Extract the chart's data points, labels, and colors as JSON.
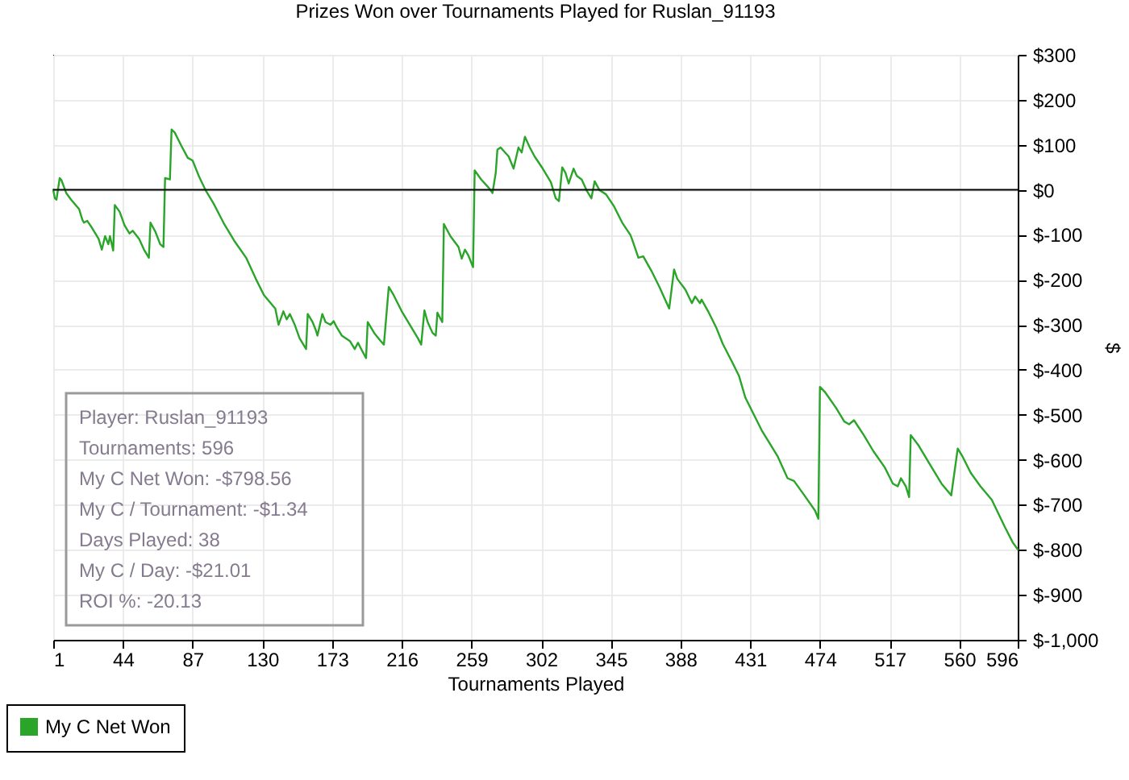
{
  "chart_data": {
    "type": "line",
    "title": "Prizes Won over Tournaments Played for Ruslan_91193",
    "xlabel": "Tournaments Played",
    "ylabel": "$",
    "x": [
      1,
      2,
      3,
      5,
      6,
      9,
      12,
      17,
      19,
      20,
      22,
      25,
      29,
      31,
      33,
      35,
      36,
      38,
      39,
      42,
      45,
      48,
      50,
      54,
      57,
      60,
      61,
      64,
      67,
      69,
      70,
      73,
      74,
      76,
      80,
      84,
      87,
      91,
      95,
      100,
      106,
      113,
      120,
      126,
      131,
      138,
      140,
      143,
      145,
      147,
      150,
      153,
      157,
      158,
      161,
      163,
      164,
      167,
      169,
      172,
      174,
      176,
      179,
      184,
      187,
      189,
      191,
      194,
      195,
      199,
      203,
      205,
      208,
      211,
      216,
      221,
      226,
      228,
      230,
      232,
      235,
      237,
      238,
      241,
      242,
      246,
      251,
      253,
      255,
      257,
      260,
      261,
      265,
      268,
      270,
      272,
      274,
      275,
      277,
      282,
      285,
      288,
      290,
      292,
      295,
      298,
      303,
      308,
      311,
      313,
      315,
      317,
      319,
      322,
      324,
      327,
      330,
      333,
      335,
      338,
      342,
      347,
      352,
      357,
      358,
      362,
      365,
      370,
      375,
      381,
      384,
      386,
      391,
      395,
      397,
      400,
      401,
      405,
      410,
      414,
      420,
      424,
      428,
      438,
      448,
      454,
      458,
      464,
      471,
      473,
      474,
      477,
      484,
      489,
      492,
      495,
      501,
      507,
      514,
      519,
      522,
      524,
      527,
      529,
      530,
      535,
      542,
      549,
      555,
      559,
      562,
      567,
      573,
      580,
      588,
      593,
      596
    ],
    "series": [
      {
        "name": "My C Net Won",
        "color": "#2aa52a",
        "values": [
          0,
          -19,
          -22,
          26,
          22,
          -7,
          -22,
          -43,
          -67,
          -73,
          -69,
          -85,
          -109,
          -133,
          -103,
          -121,
          -103,
          -135,
          -34,
          -49,
          -79,
          -97,
          -91,
          -109,
          -133,
          -151,
          -73,
          -93,
          -121,
          -127,
          26,
          23,
          134,
          127,
          98,
          71,
          65,
          29,
          -1,
          -31,
          -73,
          -115,
          -151,
          -198,
          -234,
          -264,
          -300,
          -270,
          -288,
          -276,
          -300,
          -330,
          -354,
          -276,
          -294,
          -312,
          -324,
          -276,
          -294,
          -300,
          -292,
          -306,
          -324,
          -336,
          -354,
          -340,
          -354,
          -374,
          -294,
          -318,
          -336,
          -344,
          -216,
          -234,
          -270,
          -300,
          -330,
          -344,
          -268,
          -294,
          -318,
          -324,
          -273,
          -294,
          -76,
          -103,
          -127,
          -153,
          -133,
          -145,
          -172,
          43,
          23,
          11,
          3,
          -7,
          38,
          89,
          94,
          74,
          47,
          94,
          83,
          118,
          94,
          74,
          47,
          17,
          -19,
          -25,
          50,
          38,
          14,
          47,
          31,
          23,
          -1,
          -19,
          19,
          -1,
          -10,
          -37,
          -73,
          -100,
          -109,
          -151,
          -148,
          -180,
          -216,
          -264,
          -177,
          -198,
          -222,
          -252,
          -237,
          -252,
          -244,
          -270,
          -306,
          -342,
          -384,
          -413,
          -462,
          -534,
          -593,
          -641,
          -647,
          -677,
          -713,
          -731,
          -438,
          -449,
          -485,
          -515,
          -521,
          -512,
          -545,
          -581,
          -617,
          -653,
          -659,
          -641,
          -659,
          -683,
          -545,
          -569,
          -611,
          -653,
          -679,
          -575,
          -593,
          -629,
          -659,
          -689,
          -749,
          -784,
          -799
        ]
      }
    ],
    "xlim": [
      1,
      596
    ],
    "xticks": [
      1,
      44,
      87,
      130,
      173,
      216,
      259,
      302,
      345,
      388,
      431,
      474,
      517,
      560,
      596
    ],
    "ylim": [
      -1000,
      300
    ],
    "yticks": [
      {
        "value": 300,
        "label": "$300"
      },
      {
        "value": 200,
        "label": "$200"
      },
      {
        "value": 100,
        "label": "$100"
      },
      {
        "value": 0,
        "label": "$0"
      },
      {
        "value": -100,
        "label": "$-100"
      },
      {
        "value": -200,
        "label": "$-200"
      },
      {
        "value": -300,
        "label": "$-300"
      },
      {
        "value": -400,
        "label": "$-400"
      },
      {
        "value": -500,
        "label": "$-500"
      },
      {
        "value": -600,
        "label": "$-600"
      },
      {
        "value": -700,
        "label": "$-700"
      },
      {
        "value": -800,
        "label": "$-800"
      },
      {
        "value": -900,
        "label": "$-900"
      },
      {
        "value": -1000,
        "label": "$-1,000"
      }
    ],
    "ref_lines": [
      {
        "axis": "y",
        "value": 0,
        "color": "#000000"
      }
    ],
    "grid": true,
    "legend": "bottom left",
    "line_style": "solid",
    "annotations": [
      "Player: Ruslan_91193",
      "Tournaments: 596",
      "My C Net Won: -$798.56",
      "My C / Tournament: -$1.34",
      "Days Played: 38",
      "My C / Day: -$21.01",
      "ROI %: -20.13"
    ]
  }
}
